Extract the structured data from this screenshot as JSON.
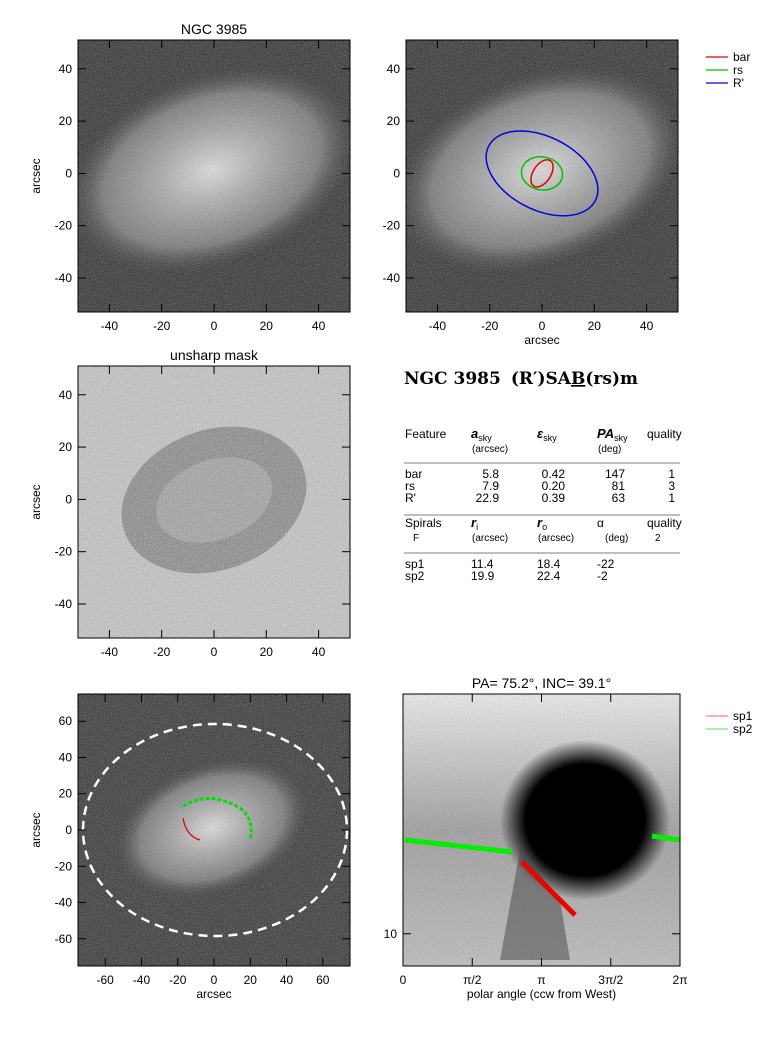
{
  "panels": [
    {
      "title": "NGC 3985",
      "ylabel": "arcsec",
      "xlim": [
        -52,
        52
      ],
      "ylim": [
        -53,
        51
      ],
      "xticks": [
        -40,
        -20,
        0,
        20,
        40
      ],
      "yticks": [
        -40,
        -20,
        0,
        20,
        40
      ]
    },
    {
      "xlabel": "arcsec",
      "xlim": [
        -52,
        52
      ],
      "ylim": [
        -53,
        51
      ],
      "xticks": [
        -40,
        -20,
        0,
        20,
        40
      ],
      "yticks": [
        -40,
        -20,
        0,
        20,
        40
      ]
    },
    {
      "title": "unsharp mask",
      "ylabel": "arcsec",
      "xlim": [
        -52,
        52
      ],
      "ylim": [
        -53,
        51
      ],
      "xticks": [
        -40,
        -20,
        0,
        20,
        40
      ],
      "yticks": [
        -40,
        -20,
        0,
        20,
        40
      ]
    },
    {
      "xlabel": "arcsec",
      "ylabel": "arcsec",
      "xlim": [
        -75,
        75
      ],
      "ylim": [
        -75,
        75
      ],
      "xticks": [
        -60,
        -40,
        -20,
        0,
        20,
        40,
        60
      ],
      "yticks": [
        -60,
        -40,
        -20,
        0,
        20,
        40,
        60
      ]
    },
    {
      "title": "PA=  75.2°, INC=  39.1°",
      "xlabel": "polar angle (ccw from West)",
      "xlim": [
        0,
        6.2832
      ],
      "ylim": [
        8.3,
        40
      ],
      "ylog": true,
      "xticks": [
        0,
        {
          "value": 1.5708,
          "label": "π/2"
        },
        {
          "value": 3.1416,
          "label": "π"
        },
        {
          "value": 4.7124,
          "label": "3π/2"
        },
        {
          "value": 6.2832,
          "label": "2π"
        }
      ],
      "yticks": [
        10
      ]
    }
  ],
  "legend1": [
    {
      "name": "bar",
      "color": "#e00000"
    },
    {
      "name": "rs",
      "color": "#00c000"
    },
    {
      "name": "R'",
      "color": "#0000e0"
    }
  ],
  "legend2": [
    {
      "name": "sp1",
      "color": "#ff6060"
    },
    {
      "name": "sp2",
      "color": "#50e050"
    }
  ],
  "table": {
    "title": [
      "NGC 3985",
      "(R′)SA",
      "B",
      "(rs)m"
    ],
    "header": [
      {
        "symbol": "Feature"
      },
      {
        "symbol": "a",
        "sub": "sky",
        "unit": "(arcsec)"
      },
      {
        "symbol": "ε",
        "sub": "sky"
      },
      {
        "symbol": "PA",
        "sub": "sky",
        "unit": "(deg)"
      },
      {
        "symbol": "quality"
      }
    ],
    "rows": [
      [
        "bar",
        "5.8",
        "0.42",
        "147",
        "1"
      ],
      [
        "rs",
        "7.9",
        "0.20",
        "81",
        "3"
      ],
      [
        "R'",
        "22.9",
        "0.39",
        "63",
        "1"
      ]
    ],
    "spiral_header": [
      {
        "symbol": "Spirals",
        "unit": "F"
      },
      {
        "symbol": "r",
        "sub": "i",
        "unit": "(arcsec)"
      },
      {
        "symbol": "r",
        "sub": "o",
        "unit": "(arcsec)"
      },
      {
        "symbol": "α",
        "unit": "(deg)"
      },
      {
        "symbol": "quality",
        "unit": "2"
      }
    ],
    "spiral_rows": [
      [
        "sp1",
        "11.4",
        "18.4",
        "-22"
      ],
      [
        "sp2",
        "19.9",
        "22.4",
        "-2"
      ]
    ]
  }
}
